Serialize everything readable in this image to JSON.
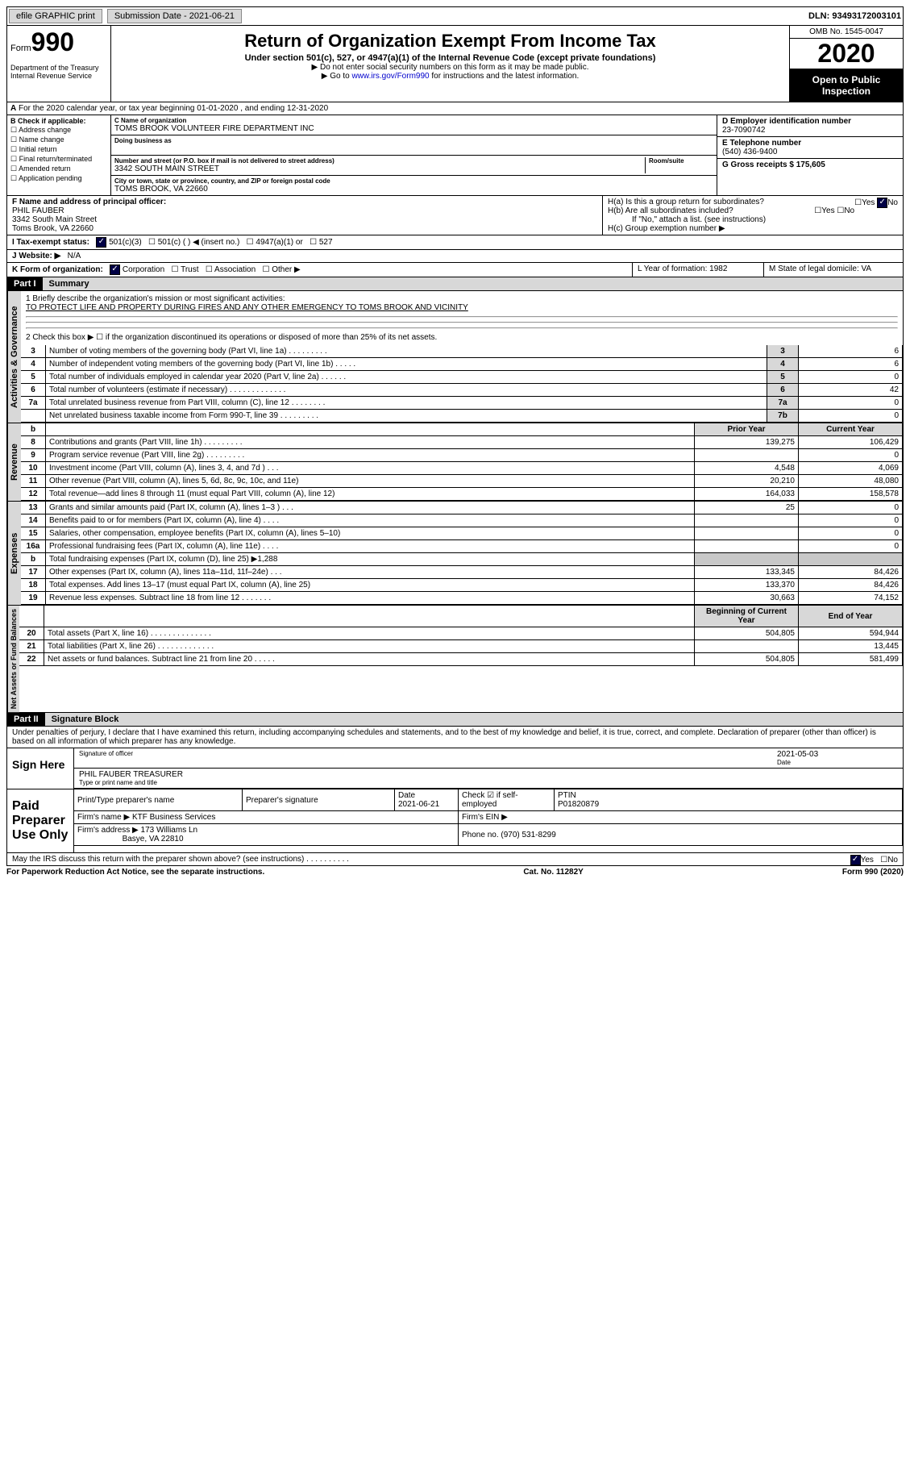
{
  "topbar": {
    "efile": "efile GRAPHIC print",
    "submission_label": "Submission Date - 2021-06-21",
    "dln": "DLN: 93493172003101"
  },
  "header": {
    "form_label": "Form",
    "form_no": "990",
    "dept": "Department of the Treasury\nInternal Revenue Service",
    "title": "Return of Organization Exempt From Income Tax",
    "sub": "Under section 501(c), 527, or 4947(a)(1) of the Internal Revenue Code (except private foundations)",
    "note1": "▶ Do not enter social security numbers on this form as it may be made public.",
    "note2_pre": "▶ Go to ",
    "note2_link": "www.irs.gov/Form990",
    "note2_post": " for instructions and the latest information.",
    "omb": "OMB No. 1545-0047",
    "year": "2020",
    "open": "Open to Public Inspection"
  },
  "rowA": "For the 2020 calendar year, or tax year beginning 01-01-2020   , and ending 12-31-2020",
  "boxB": {
    "label": "B Check if applicable:",
    "items": [
      "Address change",
      "Name change",
      "Initial return",
      "Final return/terminated",
      "Amended return",
      "Application pending"
    ]
  },
  "boxC": {
    "name_lbl": "C Name of organization",
    "name": "TOMS BROOK VOLUNTEER FIRE DEPARTMENT INC",
    "dba_lbl": "Doing business as",
    "addr_lbl": "Number and street (or P.O. box if mail is not delivered to street address)",
    "room_lbl": "Room/suite",
    "addr": "3342 SOUTH MAIN STREET",
    "city_lbl": "City or town, state or province, country, and ZIP or foreign postal code",
    "city": "TOMS BROOK, VA  22660"
  },
  "boxD": {
    "lbl": "D Employer identification number",
    "val": "23-7090742"
  },
  "boxE": {
    "lbl": "E Telephone number",
    "val": "(540) 436-9400"
  },
  "boxG": {
    "lbl": "G Gross receipts $ 175,605"
  },
  "boxF": {
    "lbl": "F Name and address of principal officer:",
    "name": "PHIL FAUBER",
    "addr1": "3342 South Main Street",
    "addr2": "Toms Brook, VA  22660"
  },
  "boxH": {
    "a": "H(a)  Is this a group return for subordinates?",
    "a_yes": "Yes",
    "a_no": "No",
    "b": "H(b)  Are all subordinates included?",
    "b_yes": "Yes",
    "b_no": "No",
    "note": "If \"No,\" attach a list. (see instructions)",
    "c": "H(c)  Group exemption number ▶"
  },
  "rowI": {
    "lbl": "I   Tax-exempt status:",
    "o1": "501(c)(3)",
    "o2": "501(c) (  ) ◀ (insert no.)",
    "o3": "4947(a)(1) or",
    "o4": "527"
  },
  "rowJ": {
    "lbl": "J   Website: ▶",
    "val": "N/A"
  },
  "rowK": {
    "lbl": "K Form of organization:",
    "o1": "Corporation",
    "o2": "Trust",
    "o3": "Association",
    "o4": "Other ▶",
    "l_lbl": "L Year of formation: 1982",
    "m_lbl": "M State of legal domicile: VA"
  },
  "part1": {
    "hdr": "Part I",
    "title": "Summary",
    "l1_lbl": "1   Briefly describe the organization's mission or most significant activities:",
    "l1_val": "TO PROTECT LIFE AND PROPERTY DURING FIRES AND ANY OTHER EMERGENCY TO TOMS BROOK AND VICINITY",
    "l2": "2   Check this box ▶ ☐  if the organization discontinued its operations or disposed of more than 25% of its net assets."
  },
  "gov_rows": [
    {
      "n": "3",
      "t": "Number of voting members of the governing body (Part VI, line 1a)   .    .    .    .    .    .    .    .    .",
      "nn": "3",
      "v": "6"
    },
    {
      "n": "4",
      "t": "Number of independent voting members of the governing body (Part VI, line 1b)   .    .    .    .    .",
      "nn": "4",
      "v": "6"
    },
    {
      "n": "5",
      "t": "Total number of individuals employed in calendar year 2020 (Part V, line 2a)   .    .    .    .    .    .",
      "nn": "5",
      "v": "0"
    },
    {
      "n": "6",
      "t": "Total number of volunteers (estimate if necessary)   .    .    .    .    .    .    .    .    .    .    .    .    .",
      "nn": "6",
      "v": "42"
    },
    {
      "n": "7a",
      "t": "Total unrelated business revenue from Part VIII, column (C), line 12   .    .    .    .    .    .    .    .",
      "nn": "7a",
      "v": "0"
    },
    {
      "n": "",
      "t": "Net unrelated business taxable income from Form 990-T, line 39   .    .    .    .    .    .    .    .    .",
      "nn": "7b",
      "v": "0"
    }
  ],
  "two_col_hdr": {
    "b": "b",
    "py": "Prior Year",
    "cy": "Current Year"
  },
  "rev_rows": [
    {
      "n": "8",
      "t": "Contributions and grants (Part VIII, line 1h)   .    .    .    .    .    .    .    .    .",
      "py": "139,275",
      "cy": "106,429"
    },
    {
      "n": "9",
      "t": "Program service revenue (Part VIII, line 2g)   .    .    .    .    .    .    .    .    .",
      "py": "",
      "cy": "0"
    },
    {
      "n": "10",
      "t": "Investment income (Part VIII, column (A), lines 3, 4, and 7d )   .    .    .",
      "py": "4,548",
      "cy": "4,069"
    },
    {
      "n": "11",
      "t": "Other revenue (Part VIII, column (A), lines 5, 6d, 8c, 9c, 10c, and 11e)",
      "py": "20,210",
      "cy": "48,080"
    },
    {
      "n": "12",
      "t": "Total revenue—add lines 8 through 11 (must equal Part VIII, column (A), line 12)",
      "py": "164,033",
      "cy": "158,578"
    }
  ],
  "exp_rows": [
    {
      "n": "13",
      "t": "Grants and similar amounts paid (Part IX, column (A), lines 1–3 )   .    .    .",
      "py": "25",
      "cy": "0"
    },
    {
      "n": "14",
      "t": "Benefits paid to or for members (Part IX, column (A), line 4)   .    .    .    .",
      "py": "",
      "cy": "0"
    },
    {
      "n": "15",
      "t": "Salaries, other compensation, employee benefits (Part IX, column (A), lines 5–10)",
      "py": "",
      "cy": "0"
    },
    {
      "n": "16a",
      "t": "Professional fundraising fees (Part IX, column (A), line 11e)   .    .    .    .",
      "py": "",
      "cy": "0"
    },
    {
      "n": "b",
      "t": "Total fundraising expenses (Part IX, column (D), line 25) ▶1,288",
      "py": "SHADE",
      "cy": "SHADE"
    },
    {
      "n": "17",
      "t": "Other expenses (Part IX, column (A), lines 11a–11d, 11f–24e)   .    .    .",
      "py": "133,345",
      "cy": "84,426"
    },
    {
      "n": "18",
      "t": "Total expenses. Add lines 13–17 (must equal Part IX, column (A), line 25)",
      "py": "133,370",
      "cy": "84,426"
    },
    {
      "n": "19",
      "t": "Revenue less expenses. Subtract line 18 from line 12   .    .    .    .    .    .    .",
      "py": "30,663",
      "cy": "74,152"
    }
  ],
  "na_hdr": {
    "py": "Beginning of Current Year",
    "cy": "End of Year"
  },
  "na_rows": [
    {
      "n": "20",
      "t": "Total assets (Part X, line 16)   .    .    .    .    .    .    .    .    .    .    .    .    .    .",
      "py": "504,805",
      "cy": "594,944"
    },
    {
      "n": "21",
      "t": "Total liabilities (Part X, line 26)   .    .    .    .    .    .    .    .    .    .    .    .    .",
      "py": "",
      "cy": "13,445"
    },
    {
      "n": "22",
      "t": "Net assets or fund balances. Subtract line 21 from line 20   .    .    .    .    .",
      "py": "504,805",
      "cy": "581,499"
    }
  ],
  "vtabs": {
    "gov": "Activities & Governance",
    "rev": "Revenue",
    "exp": "Expenses",
    "na": "Net Assets or\nFund Balances"
  },
  "part2": {
    "hdr": "Part II",
    "title": "Signature Block",
    "decl": "Under penalties of perjury, I declare that I have examined this return, including accompanying schedules and statements, and to the best of my knowledge and belief, it is true, correct, and complete. Declaration of preparer (other than officer) is based on all information of which preparer has any knowledge.",
    "sign_here": "Sign Here",
    "sig_officer": "Signature of officer",
    "date": "2021-05-03",
    "date_lbl": "Date",
    "name": "PHIL FAUBER  TREASURER",
    "name_lbl": "Type or print name and title",
    "paid": "Paid Preparer Use Only",
    "p_name_lbl": "Print/Type preparer's name",
    "p_sig_lbl": "Preparer's signature",
    "p_date_lbl": "Date",
    "p_date": "2021-06-21",
    "p_check": "Check ☑ if self-employed",
    "ptin_lbl": "PTIN",
    "ptin": "P01820879",
    "firm_name_lbl": "Firm's name  ▶",
    "firm_name": "KTF Business Services",
    "firm_ein": "Firm's EIN ▶",
    "firm_addr_lbl": "Firm's address ▶",
    "firm_addr1": "173 Williams Ln",
    "firm_addr2": "Basye, VA  22810",
    "phone_lbl": "Phone no. (970) 531-8299",
    "irs_q": "May the IRS discuss this return with the preparer shown above? (see instructions)   .    .    .    .    .    .    .    .    .    .",
    "yes": "Yes",
    "no": "No"
  },
  "footer": {
    "left": "For Paperwork Reduction Act Notice, see the separate instructions.",
    "mid": "Cat. No. 11282Y",
    "right": "Form 990 (2020)"
  }
}
